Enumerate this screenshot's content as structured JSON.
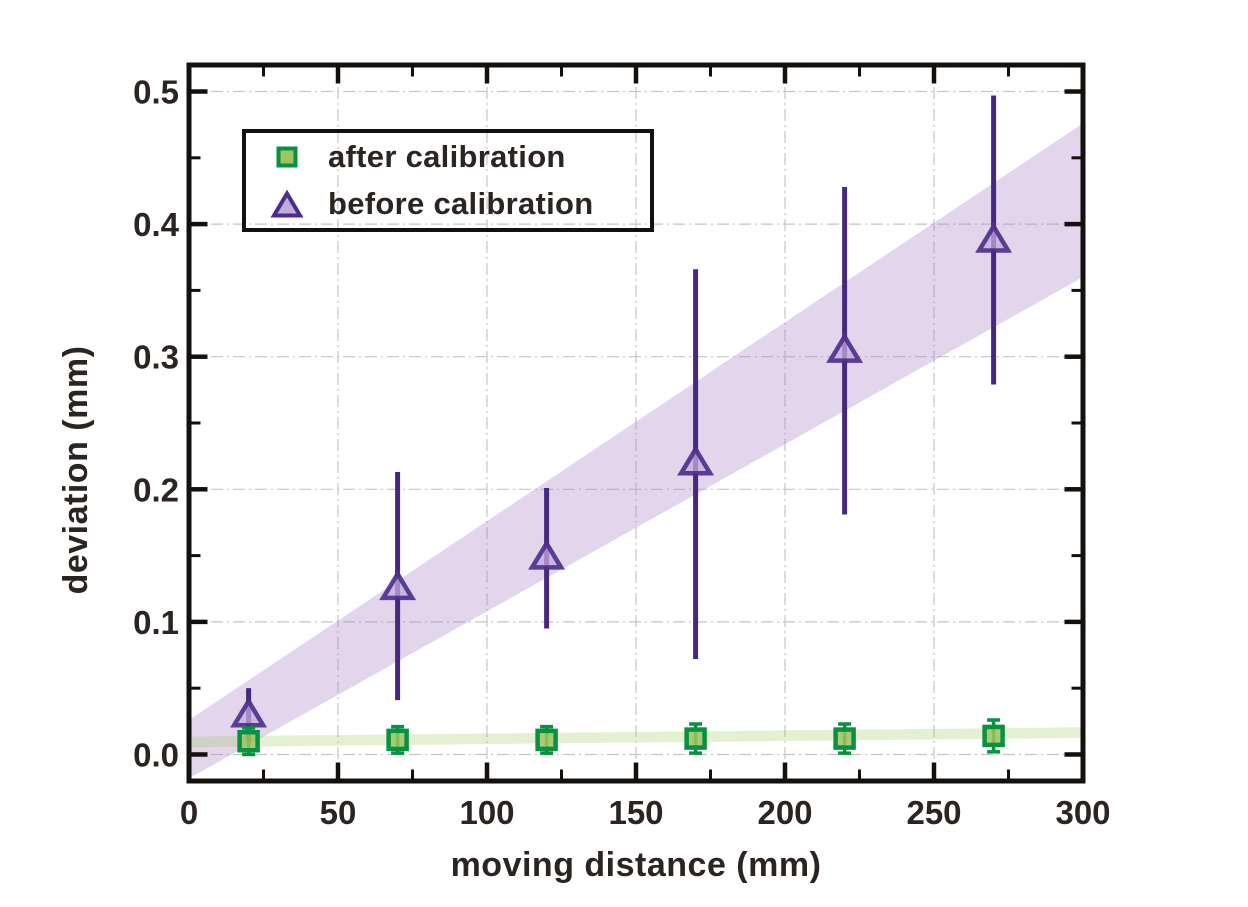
{
  "chart_data": {
    "type": "scatter",
    "title": "",
    "xlabel": "moving distance (mm)",
    "ylabel": "deviation (mm)",
    "xlim": [
      0,
      300
    ],
    "ylim": [
      -0.02,
      0.52
    ],
    "x_major_ticks": [
      0,
      50,
      100,
      150,
      200,
      250,
      300
    ],
    "x_tick_labels": [
      "0",
      "50",
      "100",
      "150",
      "200",
      "250",
      "300"
    ],
    "x_minor_ticks": [
      25,
      75,
      125,
      175,
      225,
      275
    ],
    "y_major_ticks": [
      0.0,
      0.1,
      0.2,
      0.3,
      0.4,
      0.5
    ],
    "y_tick_labels": [
      "0.0",
      "0.1",
      "0.2",
      "0.3",
      "0.4",
      "0.5"
    ],
    "y_minor_ticks": [
      0.05,
      0.15,
      0.25,
      0.35,
      0.45
    ],
    "grid": "major-ticks, dash-dot, light gray",
    "legend_position": "upper-left",
    "x": [
      20,
      70,
      120,
      170,
      220,
      270
    ],
    "series": [
      {
        "name": "after calibration",
        "marker": "square",
        "y": [
          0.01,
          0.011,
          0.011,
          0.012,
          0.012,
          0.014
        ],
        "yerr_plus": [
          0.01,
          0.01,
          0.01,
          0.011,
          0.011,
          0.012
        ],
        "yerr_minus": [
          0.01,
          0.01,
          0.01,
          0.011,
          0.011,
          0.012
        ],
        "fill": "#9ec35f",
        "stroke": "#079140",
        "errorbar_color": "#079140",
        "error_caps": true,
        "band": {
          "x": [
            0,
            300
          ],
          "upper": [
            0.0135,
            0.0205
          ],
          "lower": [
            0.0055,
            0.0125
          ],
          "color": "#9cc95a",
          "opacity": 0.27
        }
      },
      {
        "name": "before calibration",
        "marker": "triangle",
        "y": [
          0.03,
          0.126,
          0.149,
          0.22,
          0.305,
          0.388
        ],
        "yerr_plus": [
          0.02,
          0.087,
          0.052,
          0.146,
          0.123,
          0.109
        ],
        "yerr_minus": [
          0.02,
          0.085,
          0.054,
          0.148,
          0.124,
          0.109
        ],
        "fill": "#c3abdb",
        "stroke": "#4b2e8c",
        "errorbar_color": "#46297f",
        "error_caps": false,
        "band": {
          "x": [
            0,
            300
          ],
          "upper": [
            0.026,
            0.476
          ],
          "lower": [
            -0.018,
            0.36
          ],
          "color": "#a87fc5",
          "opacity": 0.33
        }
      }
    ]
  },
  "colors": {
    "text": "#2b2421",
    "frame": "#13100e",
    "grid": "#c6c6c6",
    "background": "#ffffff"
  }
}
